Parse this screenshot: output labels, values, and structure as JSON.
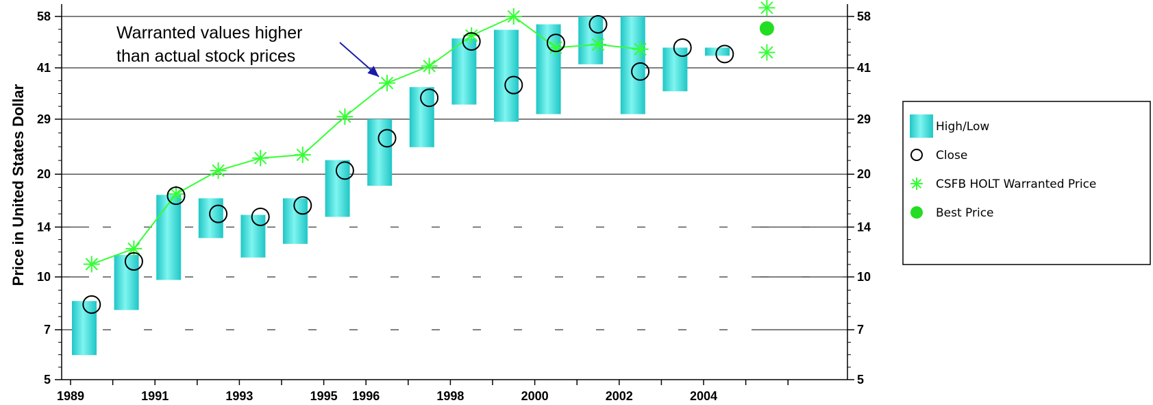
{
  "chart_data": {
    "type": "bar",
    "ylabel": "Price in United States Dollar",
    "y_scale": "log",
    "ylim": [
      5,
      58
    ],
    "y_ticks": [
      5,
      7,
      10,
      14,
      20,
      29,
      41,
      58
    ],
    "x_tick_labels": [
      "1989",
      "1991",
      "1993",
      "1995",
      "1996",
      "1998",
      "2000",
      "2002",
      "2004"
    ],
    "annotation": {
      "lines": [
        "Warranted values higher",
        "than actual stock prices"
      ],
      "arrow_to_year": 1996.5,
      "arrow_to_value": 37
    },
    "legend": {
      "placement": "right",
      "items": [
        {
          "label": "High/Low",
          "symbol": "bar"
        },
        {
          "label": "Close",
          "symbol": "circle"
        },
        {
          "label": "CSFB HOLT Warranted Price",
          "symbol": "asterisk"
        },
        {
          "label": "Best Price",
          "symbol": "filled-circle"
        }
      ]
    },
    "colors": {
      "bar": "#1fc6c6",
      "bar_light": "#7ff5f0",
      "warranted": "#33ff33",
      "best": "#22dd22",
      "arrow": "#1a1aaa",
      "grid": "#555555"
    },
    "series": [
      {
        "name": "High/Low",
        "points": [
          {
            "year": 1989,
            "low": 5.9,
            "high": 8.5
          },
          {
            "year": 1990,
            "low": 8.0,
            "high": 11.6
          },
          {
            "year": 1991,
            "low": 9.8,
            "high": 17.4
          },
          {
            "year": 1992,
            "low": 13.0,
            "high": 17.0
          },
          {
            "year": 1993,
            "low": 11.4,
            "high": 15.2
          },
          {
            "year": 1994,
            "low": 12.5,
            "high": 17.0
          },
          {
            "year": 1995,
            "low": 15.0,
            "high": 22.0
          },
          {
            "year": 1996,
            "low": 18.5,
            "high": 29.0
          },
          {
            "year": 1997,
            "low": 24.0,
            "high": 36.0
          },
          {
            "year": 1998,
            "low": 32.0,
            "high": 50.0
          },
          {
            "year": 1999,
            "low": 28.5,
            "high": 53.0
          },
          {
            "year": 2000,
            "low": 30.0,
            "high": 55.0
          },
          {
            "year": 2001,
            "low": 42.0,
            "high": 58.0
          },
          {
            "year": 2002,
            "low": 30.0,
            "high": 58.0
          },
          {
            "year": 2003,
            "low": 35.0,
            "high": 47.0
          },
          {
            "year": 2004,
            "low": 44.5,
            "high": 47.0
          }
        ]
      },
      {
        "name": "Close",
        "points": [
          {
            "year": 1989.5,
            "value": 8.3
          },
          {
            "year": 1990.5,
            "value": 11.1
          },
          {
            "year": 1991.5,
            "value": 17.3
          },
          {
            "year": 1992.5,
            "value": 15.3
          },
          {
            "year": 1993.5,
            "value": 15.0
          },
          {
            "year": 1994.5,
            "value": 16.2
          },
          {
            "year": 1995.5,
            "value": 20.5
          },
          {
            "year": 1996.5,
            "value": 25.5
          },
          {
            "year": 1997.5,
            "value": 33.5
          },
          {
            "year": 1998.5,
            "value": 49.0
          },
          {
            "year": 1999.5,
            "value": 36.5
          },
          {
            "year": 2000.5,
            "value": 48.5
          },
          {
            "year": 2001.5,
            "value": 55.0
          },
          {
            "year": 2002.5,
            "value": 40.0
          },
          {
            "year": 2003.5,
            "value": 47.0
          },
          {
            "year": 2004.5,
            "value": 45.0
          }
        ]
      },
      {
        "name": "CSFB HOLT Warranted Price",
        "points": [
          {
            "year": 1989.5,
            "value": 10.9
          },
          {
            "year": 1990.5,
            "value": 12.1
          },
          {
            "year": 1991.5,
            "value": 17.5
          },
          {
            "year": 1992.5,
            "value": 20.5
          },
          {
            "year": 1993.5,
            "value": 22.3
          },
          {
            "year": 1994.5,
            "value": 22.8
          },
          {
            "year": 1995.5,
            "value": 29.5
          },
          {
            "year": 1996.5,
            "value": 37.0
          },
          {
            "year": 1997.5,
            "value": 41.5
          },
          {
            "year": 1998.5,
            "value": 51.0
          },
          {
            "year": 1999.5,
            "value": 58.0
          },
          {
            "year": 2000.5,
            "value": 47.0
          },
          {
            "year": 2001.5,
            "value": 48.0
          },
          {
            "year": 2002.5,
            "value": 46.5
          }
        ],
        "extra_points": [
          {
            "year": 2005.5,
            "value": 61.5
          },
          {
            "year": 2005.5,
            "value": 45.5
          }
        ]
      },
      {
        "name": "Best Price",
        "points": [
          {
            "year": 2005.5,
            "value": 53.5
          }
        ]
      }
    ]
  }
}
